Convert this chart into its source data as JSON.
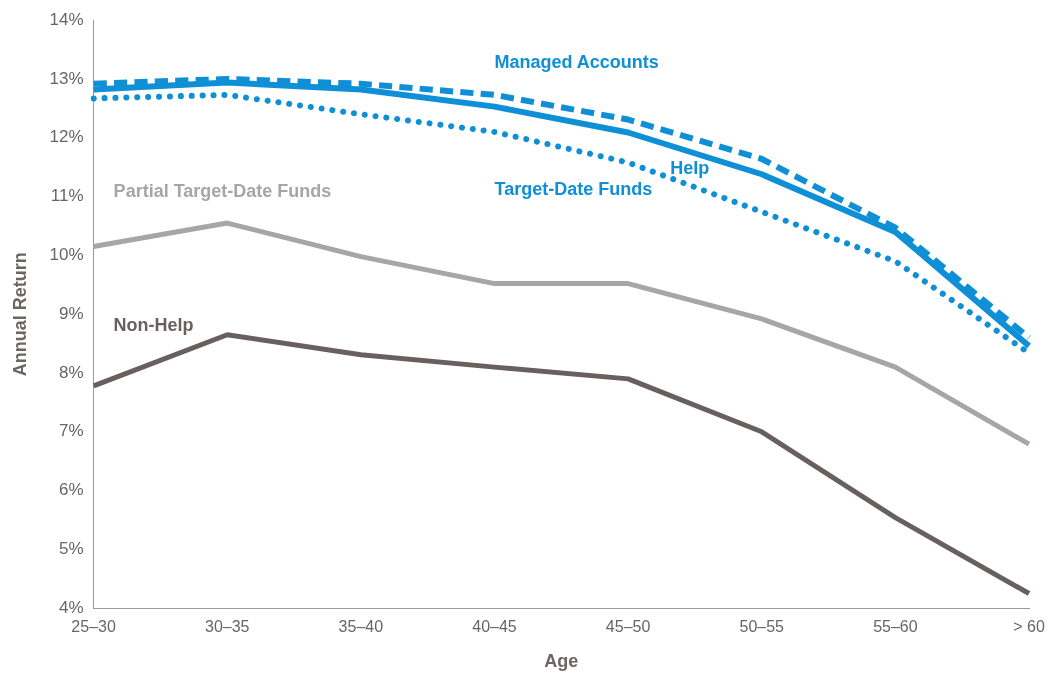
{
  "chart_data": {
    "type": "line",
    "xlabel": "Age",
    "ylabel": "Annual Return",
    "categories": [
      "25–30",
      "30–35",
      "35–40",
      "40–45",
      "45–50",
      "50–55",
      "55–60",
      "> 60"
    ],
    "ylim": [
      4,
      14
    ],
    "yticks": [
      {
        "value": 4,
        "label": "4%"
      },
      {
        "value": 5,
        "label": "5%"
      },
      {
        "value": 6,
        "label": "6%"
      },
      {
        "value": 7,
        "label": "7%"
      },
      {
        "value": 8,
        "label": "8%"
      },
      {
        "value": 9,
        "label": "9%"
      },
      {
        "value": 10,
        "label": "10%"
      },
      {
        "value": 11,
        "label": "11%"
      },
      {
        "value": 12,
        "label": "12%"
      },
      {
        "value": 13,
        "label": "13%"
      },
      {
        "value": 14,
        "label": "14%"
      }
    ],
    "grid": false,
    "legend": false,
    "marker": "none",
    "series": [
      {
        "name": "Managed Accounts",
        "color": "#0f8fd6",
        "line_style": "dashed",
        "values": [
          12.92,
          13.0,
          12.92,
          12.73,
          12.31,
          11.64,
          10.47,
          8.6
        ]
      },
      {
        "name": "Help",
        "color": "#0f8fd6",
        "line_style": "solid",
        "values": [
          12.82,
          12.94,
          12.82,
          12.53,
          12.09,
          11.38,
          10.4,
          8.46
        ]
      },
      {
        "name": "Target-Date Funds",
        "color": "#0f8fd6",
        "line_style": "dotted",
        "values": [
          12.67,
          12.73,
          12.4,
          12.1,
          11.58,
          10.74,
          9.9,
          8.34
        ]
      },
      {
        "name": "Partial Target-Date Funds",
        "color": "#a8a5a4",
        "line_style": "solid",
        "values": [
          10.15,
          10.55,
          9.98,
          9.52,
          9.52,
          8.92,
          8.1,
          6.79
        ]
      },
      {
        "name": "Non-Help",
        "color": "#67605f",
        "line_style": "solid",
        "values": [
          7.78,
          8.65,
          8.31,
          8.1,
          7.9,
          7.0,
          5.54,
          4.25
        ]
      }
    ]
  }
}
